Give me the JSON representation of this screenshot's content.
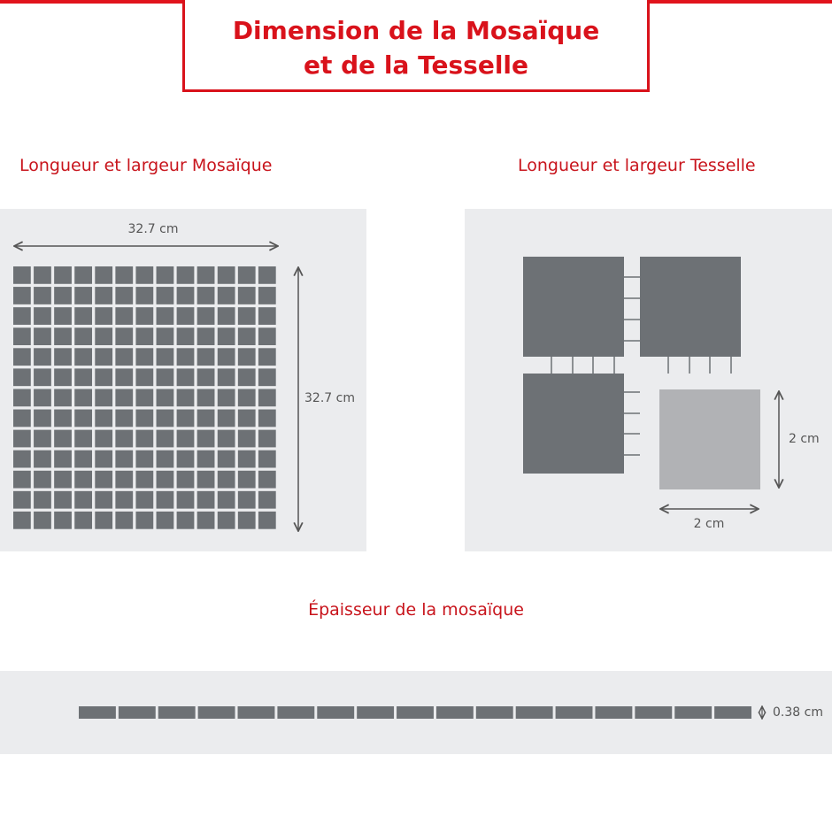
{
  "header": {
    "title_line1": "Dimension de la Mosaïque",
    "title_line2": "et de la Tesselle"
  },
  "sections": {
    "mosaic": {
      "heading": "Longueur et largeur Mosaïque",
      "width_label": "32.7 cm",
      "height_label": "32.7 cm",
      "grid_rows": 13,
      "grid_cols": 13
    },
    "tile": {
      "heading": "Longueur et largeur Tesselle",
      "width_label": "2 cm",
      "height_label": "2 cm"
    },
    "thickness": {
      "heading": "Épaisseur de la mosaïque",
      "label": "0.38 cm",
      "tile_count": 17
    }
  },
  "colors": {
    "accent": "#d9121b",
    "tile": "#6d7175",
    "tile_highlight": "#b1b2b5",
    "panel": "#ebecee",
    "arrow": "#555555"
  }
}
